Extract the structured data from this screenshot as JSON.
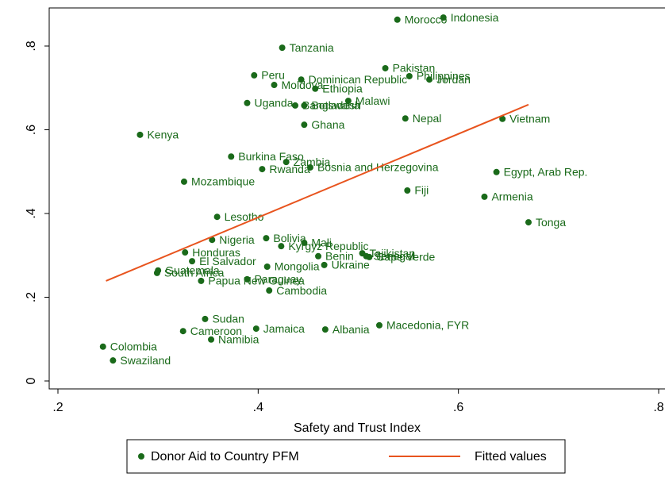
{
  "chart_data": {
    "type": "scatter",
    "x_label": "Safety and Trust Index",
    "xlim": [
      0.2,
      0.8
    ],
    "ylim": [
      0,
      0.9
    ],
    "xticks": [
      {
        "value": 0.2,
        "label": ".2"
      },
      {
        "value": 0.4,
        "label": ".4"
      },
      {
        "value": 0.6,
        "label": ".6"
      },
      {
        "value": 0.8,
        "label": ".8"
      }
    ],
    "yticks": [
      {
        "value": 0,
        "label": "0"
      },
      {
        "value": 0.2,
        "label": ".2"
      },
      {
        "value": 0.4,
        "label": ".4"
      },
      {
        "value": 0.6,
        "label": ".6"
      },
      {
        "value": 0.8,
        "label": ".8"
      }
    ],
    "grid": false,
    "legend": "bottom",
    "series": [
      {
        "name": "Donor Aid to Country PFM",
        "type": "scatter",
        "color": "#1a6a1a",
        "labels": [
          "Indonesia",
          "Morocco",
          "Tanzania",
          "Pakistan",
          "Philippines",
          "Peru",
          "Dominican Republic",
          "Jordan",
          "Moldova",
          "Ethiopia",
          "Malawi",
          "Uganda",
          "Botswana",
          "Bangladesh",
          "Nepal",
          "Vietnam",
          "Ghana",
          "Kenya",
          "Burkina Faso",
          "Zambia",
          "Bosnia and Herzegovina",
          "Rwanda",
          "Egypt, Arab Rep.",
          "Mozambique",
          "Fiji",
          "Armenia",
          "Lesotho",
          "Tonga",
          "Nigeria",
          "Bolivia",
          "Mali",
          "Kyrgyz Republic",
          "Tajikistan",
          "Benin",
          "Senegal",
          "Cape Verde",
          "Honduras",
          "El Salvador",
          "Mongolia",
          "Ukraine",
          "Guatemala",
          "South Africa",
          "Papua New Guinea",
          "Paraguay",
          "Cambodia",
          "Sudan",
          "Cameroon",
          "Jamaica",
          "Albania",
          "Macedonia, FYR",
          "Namibia",
          "Colombia",
          "Swaziland"
        ],
        "x": [
          0.585,
          0.539,
          0.424,
          0.527,
          0.551,
          0.396,
          0.443,
          0.571,
          0.416,
          0.457,
          0.49,
          0.389,
          0.446,
          0.437,
          0.547,
          0.644,
          0.446,
          0.282,
          0.373,
          0.428,
          0.452,
          0.404,
          0.638,
          0.326,
          0.549,
          0.626,
          0.359,
          0.67,
          0.354,
          0.408,
          0.446,
          0.423,
          0.504,
          0.46,
          0.508,
          0.511,
          0.327,
          0.334,
          0.409,
          0.466,
          0.3,
          0.299,
          0.343,
          0.389,
          0.411,
          0.347,
          0.325,
          0.398,
          0.467,
          0.521,
          0.353,
          0.245,
          0.255
        ],
        "y": [
          0.868,
          0.863,
          0.796,
          0.747,
          0.728,
          0.73,
          0.72,
          0.72,
          0.707,
          0.698,
          0.669,
          0.664,
          0.658,
          0.658,
          0.627,
          0.626,
          0.612,
          0.588,
          0.536,
          0.523,
          0.51,
          0.506,
          0.499,
          0.476,
          0.455,
          0.44,
          0.392,
          0.379,
          0.337,
          0.341,
          0.33,
          0.322,
          0.305,
          0.298,
          0.298,
          0.296,
          0.307,
          0.286,
          0.273,
          0.277,
          0.264,
          0.258,
          0.239,
          0.243,
          0.216,
          0.148,
          0.119,
          0.125,
          0.123,
          0.133,
          0.099,
          0.082,
          0.049
        ]
      },
      {
        "name": "Fitted values",
        "type": "line",
        "color": "#e8541e",
        "x": [
          0.248,
          0.67
        ],
        "y": [
          0.239,
          0.66
        ]
      }
    ]
  }
}
